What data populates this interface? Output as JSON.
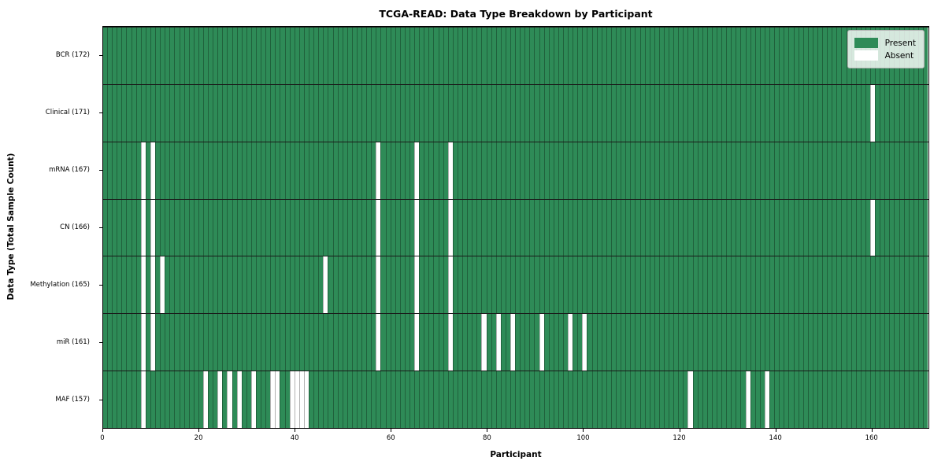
{
  "chart_data": {
    "type": "heatmap",
    "title": "TCGA-READ: Data Type Breakdown by Participant",
    "xlabel": "Participant",
    "ylabel": "Data Type (Total Sample Count)",
    "n_participants": 172,
    "x_axis_range": [
      0,
      172
    ],
    "x_ticks": [
      0,
      20,
      40,
      60,
      80,
      100,
      120,
      140,
      160
    ],
    "grid": "cell-borders",
    "legend_position": "upper right",
    "colors": {
      "present": "#2e8b57",
      "absent": "#ffffff"
    },
    "legend": [
      {
        "key": "present",
        "label": "Present",
        "color": "#2e8b57"
      },
      {
        "key": "absent",
        "label": "Absent",
        "color": "#ffffff"
      }
    ],
    "rows": [
      {
        "label": "BCR (172)",
        "data_type": "BCR",
        "present_count": 172,
        "absent_participants": []
      },
      {
        "label": "Clinical (171)",
        "data_type": "Clinical",
        "present_count": 171,
        "absent_participants": [
          160
        ]
      },
      {
        "label": "mRNA (167)",
        "data_type": "mRNA",
        "present_count": 167,
        "absent_participants": [
          8,
          10,
          57,
          65,
          72
        ]
      },
      {
        "label": "CN (166)",
        "data_type": "CN",
        "present_count": 166,
        "absent_participants": [
          8,
          10,
          57,
          65,
          72,
          160
        ]
      },
      {
        "label": "Methylation (165)",
        "data_type": "Methylation",
        "present_count": 165,
        "absent_participants": [
          8,
          10,
          12,
          46,
          57,
          65,
          72
        ]
      },
      {
        "label": "miR (161)",
        "data_type": "miR",
        "present_count": 161,
        "absent_participants": [
          8,
          10,
          57,
          65,
          72,
          79,
          82,
          85,
          91,
          97,
          100
        ]
      },
      {
        "label": "MAF (157)",
        "data_type": "MAF",
        "present_count": 157,
        "absent_participants": [
          8,
          21,
          24,
          26,
          28,
          31,
          35,
          36,
          39,
          40,
          41,
          42,
          122,
          134,
          138
        ]
      }
    ]
  }
}
